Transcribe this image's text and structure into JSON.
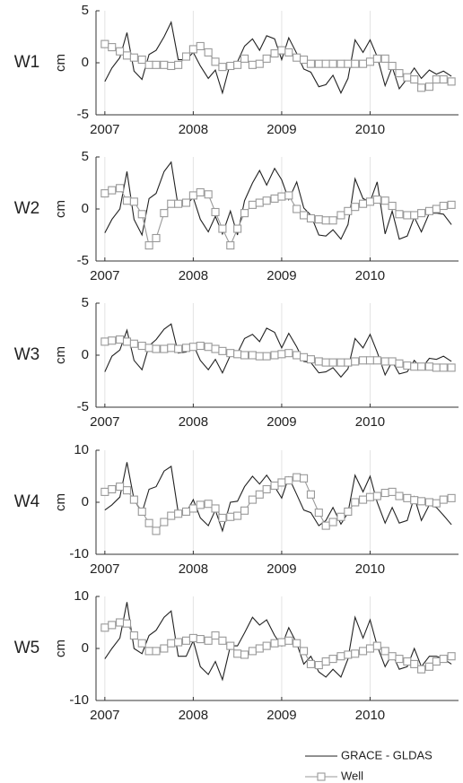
{
  "chart_data": [
    {
      "type": "line",
      "title": "W1",
      "ylabel": "cm",
      "x": [
        2007,
        2007.08,
        2007.17,
        2007.25,
        2007.33,
        2007.42,
        2007.5,
        2007.58,
        2007.67,
        2007.75,
        2007.83,
        2007.92,
        2008,
        2008.08,
        2008.17,
        2008.25,
        2008.33,
        2008.42,
        2008.5,
        2008.58,
        2008.67,
        2008.75,
        2008.83,
        2008.92,
        2009,
        2009.08,
        2009.17,
        2009.25,
        2009.33,
        2009.42,
        2009.5,
        2009.58,
        2009.67,
        2009.75,
        2009.83,
        2009.92,
        2010,
        2010.08,
        2010.17,
        2010.25,
        2010.33,
        2010.42,
        2010.5,
        2010.58,
        2010.67,
        2010.75,
        2010.83,
        2010.92
      ],
      "series": [
        {
          "name": "GRACE - GLDAS",
          "color": "#222222",
          "values": [
            -1.8,
            -0.5,
            0.5,
            2.9,
            -0.8,
            -1.6,
            0.8,
            1.2,
            2.5,
            3.9,
            0.3,
            0.3,
            1.0,
            -0.3,
            -1.5,
            -0.7,
            -2.9,
            0.0,
            0.1,
            1.6,
            2.3,
            1.2,
            2.6,
            2.3,
            0.3,
            2.4,
            0.9,
            -0.6,
            -0.9,
            -2.3,
            -2.1,
            -1.2,
            -2.9,
            -1.5,
            2.2,
            1.0,
            2.2,
            0.6,
            -2.2,
            -0.4,
            -2.5,
            -1.5,
            -0.5,
            -1.5,
            -0.7,
            -1.1,
            -0.8,
            -1.3
          ]
        },
        {
          "name": "Well",
          "color": "#999999",
          "marker": "square",
          "values": [
            1.8,
            1.5,
            1.1,
            0.7,
            0.5,
            0.3,
            -0.2,
            -0.2,
            -0.2,
            -0.3,
            -0.2,
            0.6,
            1.3,
            1.6,
            1.0,
            0.1,
            -0.4,
            -0.3,
            -0.2,
            0.4,
            -0.2,
            -0.1,
            0.4,
            0.9,
            1.2,
            1.0,
            0.5,
            0.3,
            -0.1,
            -0.1,
            -0.1,
            -0.1,
            -0.1,
            -0.1,
            -0.1,
            -0.1,
            0.1,
            0.4,
            0.4,
            -0.3,
            -1.0,
            -1.4,
            -1.6,
            -2.4,
            -2.3,
            -1.6,
            -1.6,
            -1.8
          ]
        }
      ],
      "xlim": [
        2006.9,
        2011
      ],
      "xticks": [
        2007,
        2008,
        2009,
        2010
      ],
      "ylim": [
        -5,
        5
      ],
      "yticks": [
        -5,
        0,
        5
      ],
      "grid": "x",
      "legend": "bottom-right"
    },
    {
      "type": "line",
      "title": "W2",
      "ylabel": "cm",
      "x": [
        2007,
        2007.08,
        2007.17,
        2007.25,
        2007.33,
        2007.42,
        2007.5,
        2007.58,
        2007.67,
        2007.75,
        2007.83,
        2007.92,
        2008,
        2008.08,
        2008.17,
        2008.25,
        2008.33,
        2008.42,
        2008.5,
        2008.58,
        2008.67,
        2008.75,
        2008.83,
        2008.92,
        2009,
        2009.08,
        2009.17,
        2009.25,
        2009.33,
        2009.42,
        2009.5,
        2009.58,
        2009.67,
        2009.75,
        2009.83,
        2009.92,
        2010,
        2010.08,
        2010.17,
        2010.25,
        2010.33,
        2010.42,
        2010.5,
        2010.58,
        2010.67,
        2010.75,
        2010.83,
        2010.92
      ],
      "series": [
        {
          "color": "#222222",
          "values": [
            -2.3,
            -1.0,
            0.0,
            3.6,
            -1.0,
            -2.5,
            1.0,
            1.5,
            3.6,
            4.5,
            0.2,
            0.4,
            1.1,
            -1.0,
            -2.2,
            -0.7,
            -2.4,
            -0.2,
            -2.5,
            0.8,
            2.5,
            3.7,
            2.3,
            3.9,
            2.8,
            0.9,
            2.6,
            0.1,
            -0.6,
            -2.5,
            -2.6,
            -2.0,
            -2.9,
            -1.5,
            2.9,
            1.0,
            0.7,
            2.6,
            -2.4,
            -0.2,
            -2.9,
            -2.6,
            -0.8,
            -2.2,
            -0.4,
            -0.4,
            -0.5,
            -1.5
          ]
        },
        {
          "color": "#999999",
          "marker": "square",
          "values": [
            1.5,
            1.8,
            2.0,
            0.8,
            0.7,
            -0.5,
            -3.5,
            -2.8,
            -0.4,
            0.5,
            0.5,
            0.6,
            1.3,
            1.6,
            1.4,
            -0.3,
            -1.9,
            -3.5,
            -1.9,
            -0.4,
            0.4,
            0.6,
            0.8,
            1.0,
            1.2,
            1.3,
            0.0,
            -0.6,
            -0.9,
            -1.0,
            -1.1,
            -1.1,
            -0.6,
            -0.2,
            0.2,
            0.5,
            0.7,
            0.9,
            0.8,
            0.3,
            -0.5,
            -0.6,
            -0.6,
            -0.4,
            -0.2,
            0.0,
            0.3,
            0.4
          ]
        }
      ],
      "xlim": [
        2006.9,
        2011
      ],
      "xticks": [
        2007,
        2008,
        2009,
        2010
      ],
      "ylim": [
        -5,
        5
      ],
      "yticks": [
        -5,
        0,
        5
      ],
      "grid": "x"
    },
    {
      "type": "line",
      "title": "W3",
      "ylabel": "cm",
      "x": [
        2007,
        2007.08,
        2007.17,
        2007.25,
        2007.33,
        2007.42,
        2007.5,
        2007.58,
        2007.67,
        2007.75,
        2007.83,
        2007.92,
        2008,
        2008.08,
        2008.17,
        2008.25,
        2008.33,
        2008.42,
        2008.5,
        2008.58,
        2008.67,
        2008.75,
        2008.83,
        2008.92,
        2009,
        2009.08,
        2009.17,
        2009.25,
        2009.33,
        2009.42,
        2009.5,
        2009.58,
        2009.67,
        2009.75,
        2009.83,
        2009.92,
        2010,
        2010.08,
        2010.17,
        2010.25,
        2010.33,
        2010.42,
        2010.5,
        2010.58,
        2010.67,
        2010.75,
        2010.83,
        2010.92
      ],
      "series": [
        {
          "color": "#222222",
          "values": [
            -1.6,
            -0.1,
            0.5,
            2.4,
            -0.5,
            -1.4,
            0.9,
            1.5,
            2.5,
            3.0,
            0.2,
            0.3,
            1.0,
            -0.5,
            -1.4,
            -0.4,
            -1.7,
            0.0,
            0.2,
            1.6,
            2.0,
            1.3,
            2.6,
            2.2,
            0.7,
            2.1,
            0.8,
            -0.6,
            -0.7,
            -1.7,
            -1.6,
            -1.2,
            -2.1,
            -1.3,
            1.6,
            0.7,
            2.0,
            0.3,
            -1.9,
            -0.6,
            -1.8,
            -1.6,
            -0.5,
            -1.3,
            -0.3,
            -0.4,
            -0.1,
            -0.6
          ]
        },
        {
          "color": "#999999",
          "marker": "square",
          "values": [
            1.3,
            1.4,
            1.5,
            1.3,
            1.1,
            0.9,
            0.7,
            0.6,
            0.6,
            0.7,
            0.6,
            0.7,
            0.8,
            0.9,
            0.8,
            0.6,
            0.4,
            0.2,
            0.1,
            0.0,
            0.0,
            -0.1,
            -0.1,
            0.0,
            0.1,
            0.2,
            0.0,
            -0.2,
            -0.4,
            -0.6,
            -0.7,
            -0.7,
            -0.7,
            -0.7,
            -0.6,
            -0.5,
            -0.5,
            -0.5,
            -0.6,
            -0.6,
            -0.8,
            -1.0,
            -1.1,
            -1.1,
            -1.1,
            -1.2,
            -1.2,
            -1.2
          ]
        }
      ],
      "xlim": [
        2006.9,
        2011
      ],
      "xticks": [
        2007,
        2008,
        2009,
        2010
      ],
      "ylim": [
        -5,
        5
      ],
      "yticks": [
        -5,
        0,
        5
      ],
      "grid": "x"
    },
    {
      "type": "line",
      "title": "W4",
      "ylabel": "cm",
      "x": [
        2007,
        2007.08,
        2007.17,
        2007.25,
        2007.33,
        2007.42,
        2007.5,
        2007.58,
        2007.67,
        2007.75,
        2007.83,
        2007.92,
        2008,
        2008.08,
        2008.17,
        2008.25,
        2008.33,
        2008.42,
        2008.5,
        2008.58,
        2008.67,
        2008.75,
        2008.83,
        2008.92,
        2009,
        2009.08,
        2009.17,
        2009.25,
        2009.33,
        2009.42,
        2009.5,
        2009.58,
        2009.67,
        2009.75,
        2009.83,
        2009.92,
        2010,
        2010.08,
        2010.17,
        2010.25,
        2010.33,
        2010.42,
        2010.5,
        2010.58,
        2010.67,
        2010.75,
        2010.83,
        2010.92
      ],
      "series": [
        {
          "color": "#222222",
          "values": [
            -1.5,
            -0.5,
            1.0,
            7.7,
            0.5,
            -2.0,
            2.5,
            3.0,
            6.0,
            6.9,
            -2.0,
            -2.0,
            0.5,
            -3.0,
            -4.5,
            -1.5,
            -5.5,
            0.0,
            0.2,
            3.0,
            5.0,
            3.5,
            5.2,
            3.0,
            0.8,
            4.8,
            1.5,
            -1.5,
            -2.0,
            -4.5,
            -3.5,
            -1.0,
            -4.2,
            -2.0,
            5.2,
            2.0,
            5.0,
            0.0,
            -4.0,
            -1.0,
            -4.0,
            -3.5,
            1.0,
            -3.5,
            -0.5,
            -1.0,
            -2.5,
            -4.3
          ]
        },
        {
          "color": "#999999",
          "marker": "square",
          "values": [
            2.0,
            2.5,
            3.0,
            2.3,
            0.5,
            -1.8,
            -4.0,
            -5.5,
            -3.8,
            -2.6,
            -2.2,
            -1.8,
            -1.2,
            -0.5,
            -0.3,
            -1.2,
            -3.0,
            -2.8,
            -2.6,
            -1.6,
            0.5,
            1.5,
            2.5,
            3.2,
            3.8,
            4.2,
            4.8,
            4.6,
            1.5,
            -2.0,
            -4.5,
            -3.8,
            -2.8,
            -1.8,
            0.0,
            0.5,
            1.0,
            1.2,
            1.8,
            2.0,
            1.2,
            0.8,
            0.4,
            0.2,
            0.0,
            -0.2,
            0.5,
            0.8
          ]
        }
      ],
      "xlim": [
        2006.9,
        2011
      ],
      "xticks": [
        2007,
        2008,
        2009,
        2010
      ],
      "ylim": [
        -10,
        10
      ],
      "yticks": [
        -10,
        0,
        10
      ],
      "grid": "x"
    },
    {
      "type": "line",
      "title": "W5",
      "ylabel": "cm",
      "x": [
        2007,
        2007.08,
        2007.17,
        2007.25,
        2007.33,
        2007.42,
        2007.5,
        2007.58,
        2007.67,
        2007.75,
        2007.83,
        2007.92,
        2008,
        2008.08,
        2008.17,
        2008.25,
        2008.33,
        2008.42,
        2008.5,
        2008.58,
        2008.67,
        2008.75,
        2008.83,
        2008.92,
        2009,
        2009.08,
        2009.17,
        2009.25,
        2009.33,
        2009.42,
        2009.5,
        2009.58,
        2009.67,
        2009.75,
        2009.83,
        2009.92,
        2010,
        2010.08,
        2010.17,
        2010.25,
        2010.33,
        2010.42,
        2010.5,
        2010.58,
        2010.67,
        2010.75,
        2010.83,
        2010.92
      ],
      "series": [
        {
          "color": "#222222",
          "values": [
            -2.0,
            0.0,
            2.0,
            8.9,
            0.0,
            -1.0,
            2.5,
            3.5,
            6.0,
            7.2,
            -1.5,
            -1.5,
            1.5,
            -3.5,
            -5.0,
            -2.5,
            -6.0,
            0.5,
            0.5,
            3.0,
            6.0,
            4.5,
            5.5,
            2.5,
            0.5,
            4.0,
            1.0,
            -3.0,
            -1.5,
            -4.5,
            -5.5,
            -4.0,
            -5.5,
            -2.0,
            6.0,
            2.0,
            5.5,
            0.5,
            -3.5,
            -1.0,
            -4.0,
            -3.5,
            0.0,
            -3.5,
            -1.5,
            -1.5,
            -2.0,
            -3.0
          ]
        },
        {
          "color": "#999999",
          "marker": "square",
          "values": [
            4.0,
            4.5,
            5.0,
            4.8,
            2.5,
            1.0,
            -0.5,
            -0.5,
            0.0,
            1.0,
            1.2,
            1.5,
            2.0,
            1.8,
            1.5,
            2.5,
            1.5,
            0.5,
            -1.0,
            -1.2,
            -0.5,
            0.0,
            0.5,
            1.0,
            1.2,
            1.5,
            1.0,
            -0.5,
            -3.0,
            -3.2,
            -2.5,
            -2.0,
            -1.5,
            -1.2,
            -1.0,
            -0.5,
            0.0,
            0.5,
            -0.5,
            -1.5,
            -2.0,
            -2.5,
            -3.0,
            -4.0,
            -3.5,
            -2.5,
            -2.0,
            -1.5
          ]
        }
      ],
      "xlim": [
        2006.9,
        2011
      ],
      "xticks": [
        2007,
        2008,
        2009,
        2010
      ],
      "ylim": [
        -10,
        10
      ],
      "yticks": [
        -10,
        0,
        10
      ],
      "grid": "x"
    }
  ]
}
